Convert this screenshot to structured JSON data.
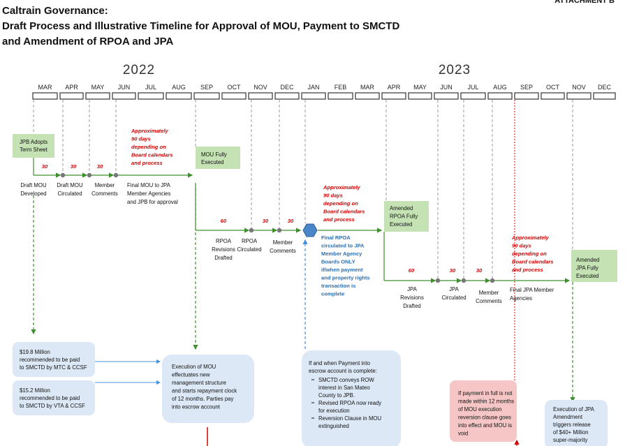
{
  "header": {
    "attachment": "ATTACHMENT B",
    "title": [
      "Caltrain Governance:",
      "Draft Process and Illustrative Timeline for Approval of MOU, Payment to SMCTD",
      " and Amendment of RPOA and JPA"
    ]
  },
  "timeline": {
    "years": [
      "2022",
      "2023"
    ],
    "months": [
      "MAR",
      "APR",
      "MAY",
      "JUN",
      "JUL",
      "AUG",
      "SEP",
      "OCT",
      "NOV",
      "DEC",
      "JAN",
      "FEB",
      "MAR",
      "APR",
      "MAY",
      "JUN",
      "JUL",
      "AUG",
      "SEP",
      "OCT",
      "NOV",
      "DEC"
    ]
  },
  "mou_track": {
    "start_box": [
      "JPB Adopts",
      "Term Sheet"
    ],
    "durations": [
      "30",
      "30",
      "30"
    ],
    "note": [
      "Approximately",
      "90 days",
      "depending on",
      "Board calendars",
      "and process"
    ],
    "steps": [
      [
        "Draft MOU",
        "Developed"
      ],
      [
        "Draft MOU",
        "Circulated"
      ],
      [
        "Member",
        "Comments"
      ],
      [
        "Final MOU to JPA",
        "Member Agencies",
        "and JPB for approval"
      ]
    ],
    "end_box": [
      "MOU Fully",
      "Executed"
    ]
  },
  "rpoa_track": {
    "durations": [
      "60",
      "30",
      "30"
    ],
    "steps": [
      [
        "RPOA",
        "Revisions",
        "Drafted"
      ],
      [
        "RPOA",
        "Circulated"
      ],
      [
        "Member",
        "Comments"
      ]
    ],
    "note": [
      "Approximately",
      "90 days",
      "depending on",
      "Board calendars",
      "and process"
    ],
    "condition": [
      "Final RPOA",
      "circulated to JPA",
      "Member Agency",
      "Boards ONLY",
      "if/when payment",
      "and property rights",
      "transaction is",
      "complete"
    ],
    "end_box": [
      "Amended",
      "RPOA Fully",
      "Executed"
    ]
  },
  "jpa_track": {
    "durations": [
      "60",
      "30",
      "30"
    ],
    "steps": [
      [
        "JPA",
        "Revisions",
        "Drafted"
      ],
      [
        "JPA",
        "Circulated"
      ],
      [
        "Member",
        "Comments"
      ],
      [
        "Final JPA Member",
        "Agencies"
      ]
    ],
    "note": [
      "Approximately",
      "90 days",
      "depending on",
      "Board calendars",
      "and process"
    ],
    "end_box": [
      "Amended",
      "JPA Fully",
      "Executed"
    ]
  },
  "boxes": {
    "payment_mtc": [
      "$19.8 Million",
      "recommended  to be paid",
      "to SMCTD by MTC & CCSF"
    ],
    "payment_vta": [
      "$15.2 Million",
      "recommended  to be paid",
      "to SMCTD by VTA & CCSF"
    ],
    "mou_execution": [
      "Execution of MOU",
      "effectuates new",
      "management structure",
      "and starts repayment clock",
      "of 12 months.  Parties pay",
      "into escrow account"
    ],
    "escrow": {
      "intro": [
        "If and when Payment into",
        "escrow account is complete:"
      ],
      "bullets": [
        [
          "SMCTD conveys ROW",
          "interest in San Mateo",
          "County to JPB."
        ],
        [
          "Revised RPOA now ready",
          "for execution"
        ],
        [
          "Reversion Clause in MOU",
          "extinguished"
        ]
      ]
    },
    "reversion": [
      "If payment in full is not",
      "made within 12 months",
      "of MOU execution",
      "reversion clause goes",
      "into effect and MOU is",
      "void"
    ],
    "jpa_execution": [
      "Execution of JPA",
      "Amendment",
      "triggers release",
      "of $40+ Million",
      "super-majority"
    ]
  }
}
